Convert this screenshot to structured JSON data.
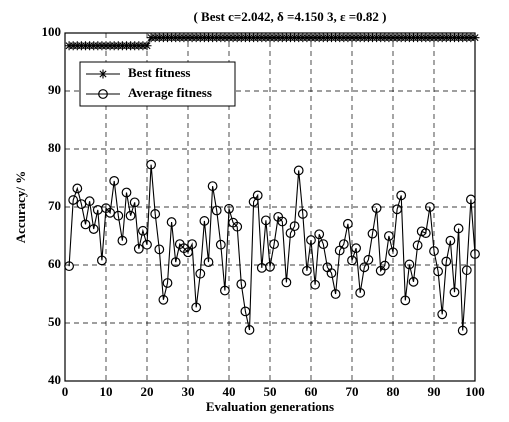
{
  "chart_data": {
    "type": "line",
    "title": "( Best c=2.042, δ =4.150 3, ε =0.82 )",
    "xlabel": "Evaluation generations",
    "ylabel": "Accuracy/ %",
    "x": [
      1,
      2,
      3,
      4,
      5,
      6,
      7,
      8,
      9,
      10,
      11,
      12,
      13,
      14,
      15,
      16,
      17,
      18,
      19,
      20,
      21,
      22,
      23,
      24,
      25,
      26,
      27,
      28,
      29,
      30,
      31,
      32,
      33,
      34,
      35,
      36,
      37,
      38,
      39,
      40,
      41,
      42,
      43,
      44,
      45,
      46,
      47,
      48,
      49,
      50,
      51,
      52,
      53,
      54,
      55,
      56,
      57,
      58,
      59,
      60,
      61,
      62,
      63,
      64,
      65,
      66,
      67,
      68,
      69,
      70,
      71,
      72,
      73,
      74,
      75,
      76,
      77,
      78,
      79,
      80,
      81,
      82,
      83,
      84,
      85,
      86,
      87,
      88,
      89,
      90,
      91,
      92,
      93,
      94,
      95,
      96,
      97,
      98,
      99,
      100
    ],
    "series": [
      {
        "name": "Best fitness",
        "color": "#000000",
        "marker": "star",
        "values": [
          97.8,
          97.8,
          97.8,
          97.8,
          97.8,
          97.8,
          97.8,
          97.8,
          97.8,
          97.8,
          97.8,
          97.8,
          97.8,
          97.8,
          97.8,
          97.8,
          97.8,
          97.8,
          97.8,
          97.8,
          99.2,
          99.2,
          99.2,
          99.2,
          99.2,
          99.2,
          99.2,
          99.2,
          99.2,
          99.2,
          99.2,
          99.2,
          99.2,
          99.2,
          99.2,
          99.2,
          99.2,
          99.2,
          99.2,
          99.2,
          99.2,
          99.2,
          99.2,
          99.2,
          99.2,
          99.2,
          99.2,
          99.2,
          99.2,
          99.2,
          99.2,
          99.2,
          99.2,
          99.2,
          99.2,
          99.2,
          99.2,
          99.2,
          99.2,
          99.2,
          99.2,
          99.2,
          99.2,
          99.2,
          99.2,
          99.2,
          99.2,
          99.2,
          99.2,
          99.2,
          99.2,
          99.2,
          99.2,
          99.2,
          99.2,
          99.2,
          99.2,
          99.2,
          99.2,
          99.2,
          99.2,
          99.2,
          99.2,
          99.2,
          99.2,
          99.2,
          99.2,
          99.2,
          99.2,
          99.2,
          99.2,
          99.2,
          99.2,
          99.2,
          99.2,
          99.2,
          99.2,
          99.2,
          99.2,
          99.2
        ]
      },
      {
        "name": "Average fitness",
        "color": "#000000",
        "marker": "circle",
        "values": [
          59.8,
          71.2,
          73.2,
          70.5,
          67,
          71,
          66.2,
          69.5,
          60.8,
          69.8,
          69,
          74.5,
          68.5,
          64.2,
          72.5,
          68.5,
          70.8,
          62.8,
          65.9,
          63.5,
          77.3,
          68.8,
          62.7,
          54,
          56.9,
          67.4,
          60.5,
          63.6,
          62.9,
          62.2,
          63.6,
          52.7,
          58.5,
          67.6,
          60.5,
          73.6,
          69.4,
          63.5,
          55.6,
          69.7,
          67.3,
          66.6,
          56.7,
          52,
          48.8,
          70.9,
          72,
          59.5,
          67.7,
          59.7,
          63.6,
          68.3,
          67.5,
          57,
          65.5,
          66.7,
          76.3,
          68.8,
          59,
          64.3,
          56.6,
          65.3,
          63.6,
          59.6,
          58.6,
          55,
          62.5,
          63.6,
          67.1,
          60.8,
          62.9,
          55.2,
          59.6,
          60.9,
          65.4,
          69.8,
          59,
          59.9,
          65,
          62.2,
          69.6,
          72,
          53.9,
          60.1,
          57.1,
          63.4,
          65.8,
          65.5,
          70,
          62.4,
          58.9,
          51.5,
          60.6,
          64.2,
          55.3,
          66.3,
          48.7,
          59.1,
          71.3,
          61.9
        ]
      }
    ],
    "xlim": [
      0,
      100
    ],
    "xticks": [
      0,
      10,
      20,
      30,
      40,
      50,
      60,
      70,
      80,
      90,
      100
    ],
    "ylim": [
      40,
      100
    ],
    "yticks": [
      40,
      50,
      60,
      70,
      80,
      90,
      100
    ],
    "grid": true,
    "legend": "upper left"
  }
}
